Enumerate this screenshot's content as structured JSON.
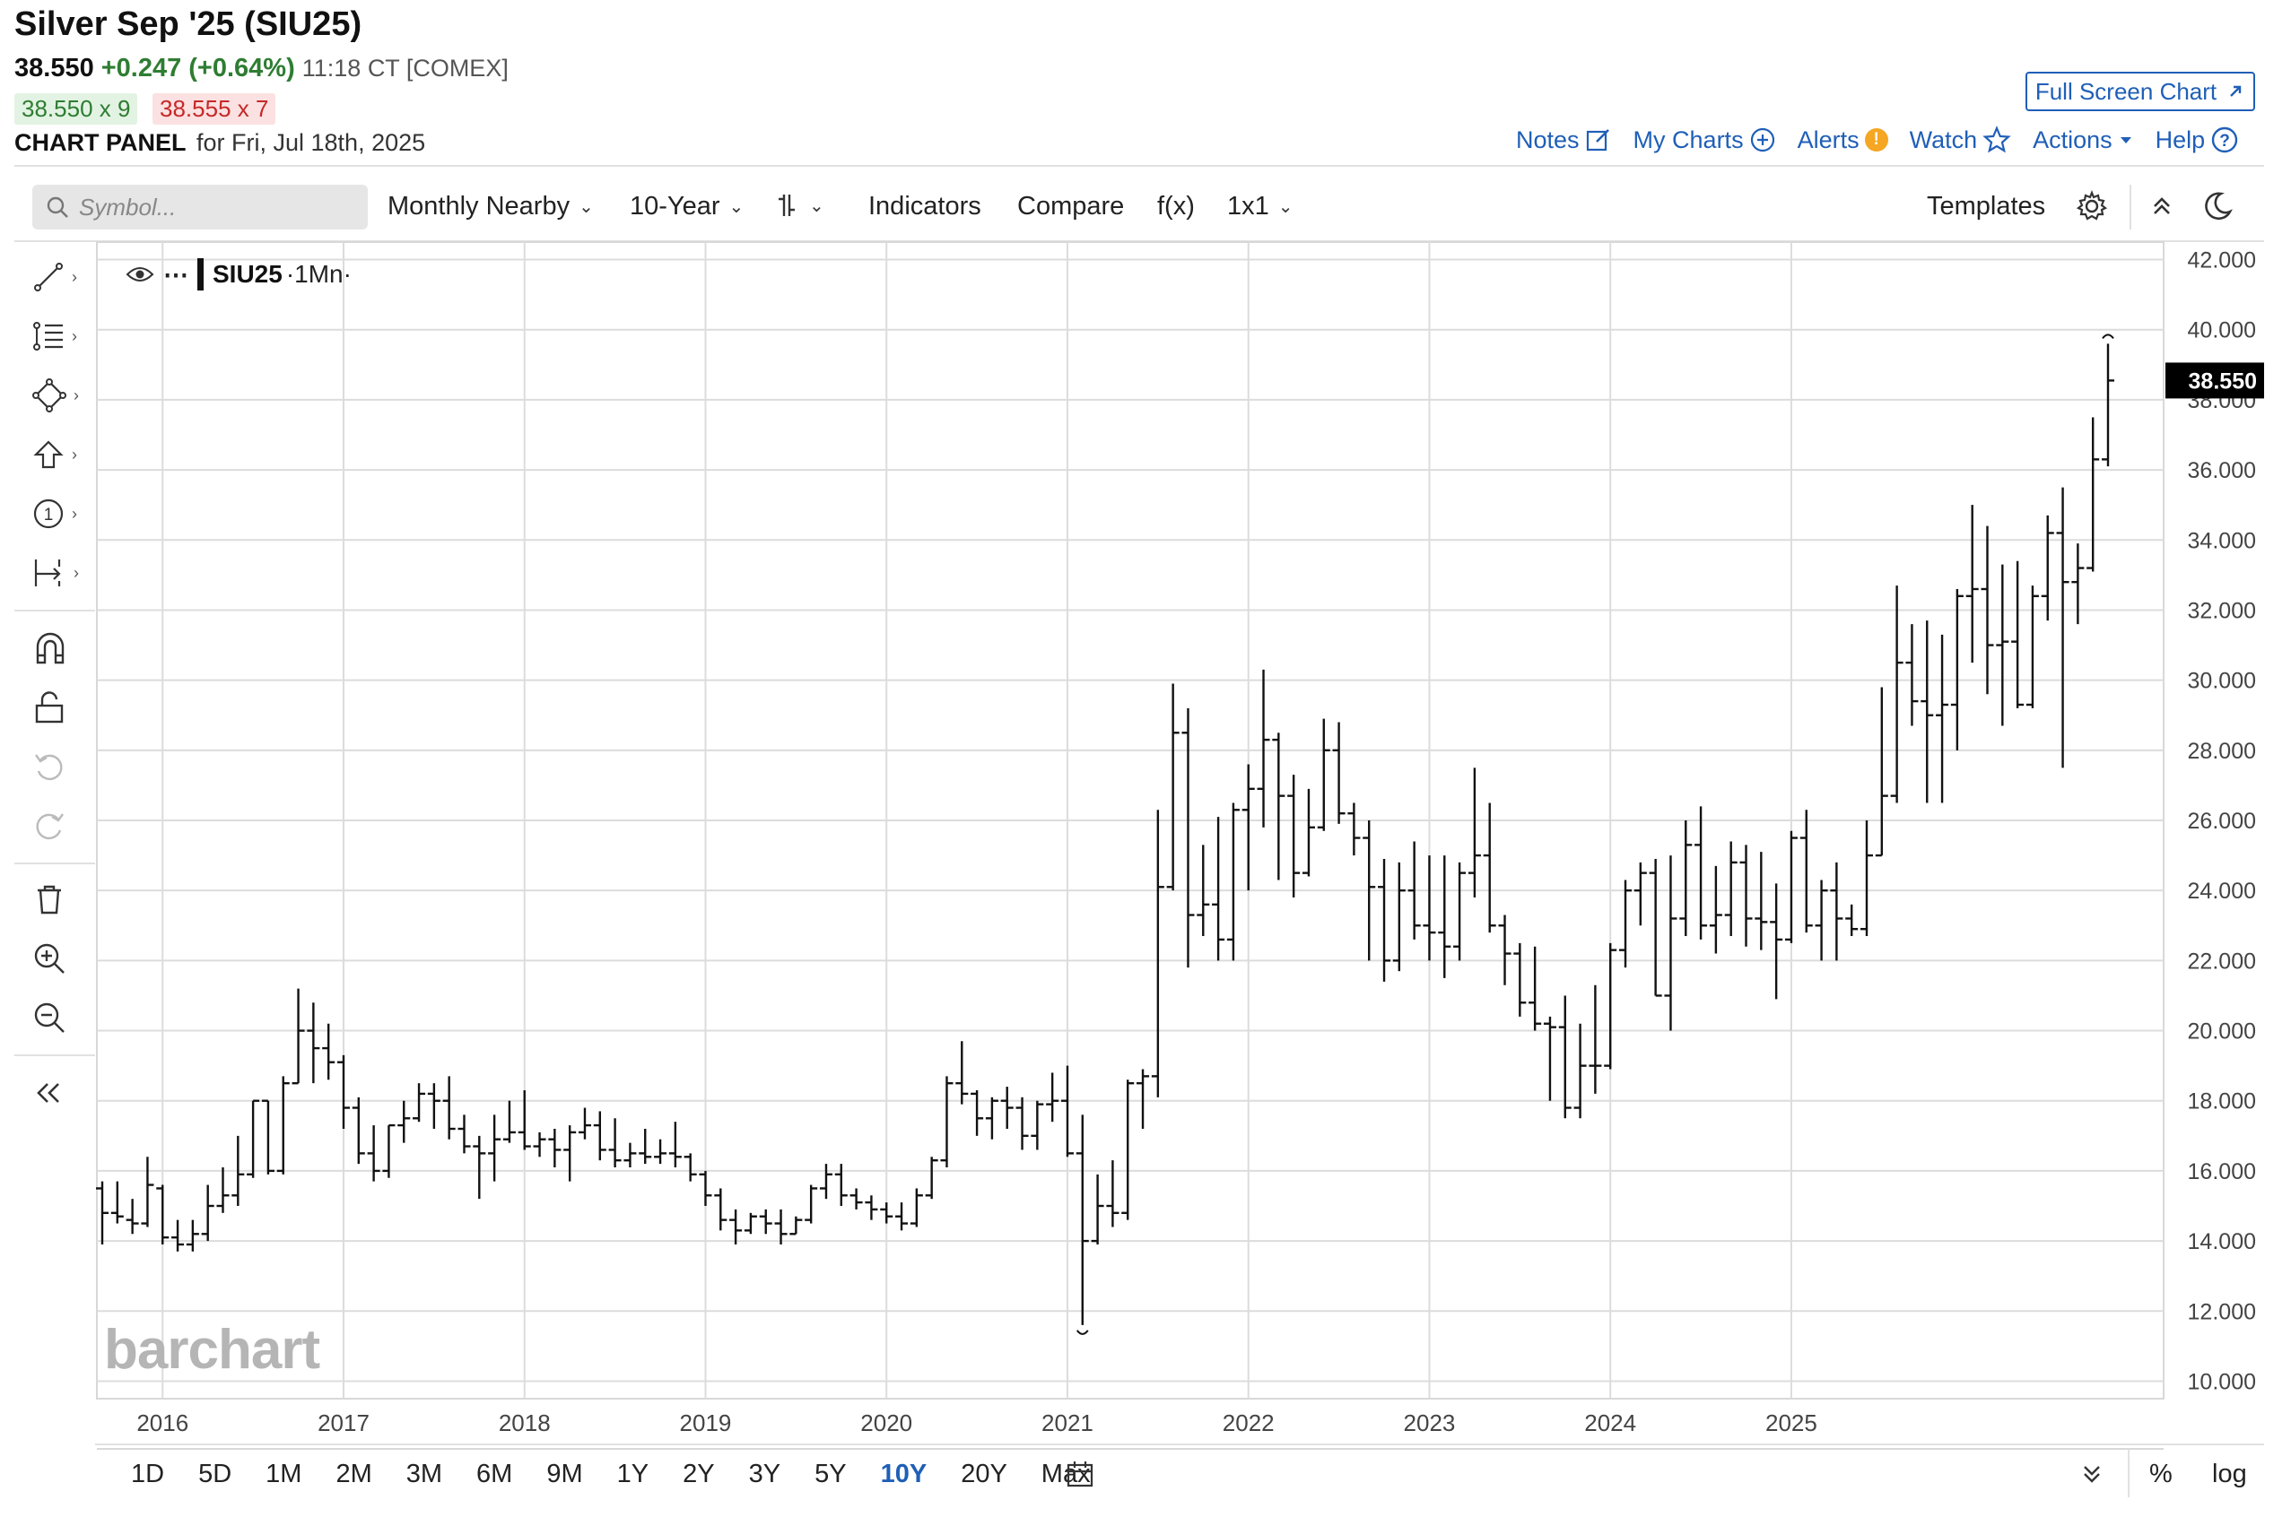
{
  "header": {
    "title": "Silver Sep '25 (SIU25)",
    "last": "38.550",
    "change": "+0.247 (+0.64%)",
    "time": "11:18 CT [COMEX]",
    "bid": "38.550 x 9",
    "ask": "38.555 x 7",
    "panel_label": "CHART PANEL",
    "panel_date": "for Fri, Jul 18th, 2025",
    "full_screen": "Full Screen Chart"
  },
  "top_links": {
    "notes": "Notes",
    "my_charts": "My Charts",
    "alerts": "Alerts",
    "watch": "Watch",
    "actions": "Actions",
    "help": "Help"
  },
  "toolbar": {
    "search_placeholder": "Symbol...",
    "aggregation": "Monthly Nearby",
    "range": "10-Year",
    "indicators": "Indicators",
    "compare": "Compare",
    "fx": "f(x)",
    "layout": "1x1",
    "templates": "Templates"
  },
  "legend": {
    "symbol": "SIU25",
    "interval": "·1Mn·"
  },
  "watermark": "barchart",
  "periods": [
    "1D",
    "5D",
    "1M",
    "2M",
    "3M",
    "6M",
    "9M",
    "1Y",
    "2Y",
    "3Y",
    "5Y",
    "10Y",
    "20Y",
    "Max"
  ],
  "selected_period": "10Y",
  "bottom_right": {
    "percent": "%",
    "log": "log"
  },
  "colors": {
    "accent": "#1f5fb7",
    "up": "#2e7d32",
    "down": "#c62828",
    "bars": "#111111",
    "grid": "#dcdcdc"
  },
  "chart_data": {
    "type": "ohlc",
    "interval": "monthly",
    "ylim": [
      9.5,
      42.5
    ],
    "y_ticks": [
      "10.000",
      "12.000",
      "14.000",
      "16.000",
      "18.000",
      "20.000",
      "22.000",
      "24.000",
      "26.000",
      "28.000",
      "30.000",
      "32.000",
      "34.000",
      "36.000",
      "38.000",
      "40.000",
      "42.000"
    ],
    "x_ticks": [
      "2016",
      "2017",
      "2018",
      "2019",
      "2020",
      "2021",
      "2022",
      "2023",
      "2024",
      "2025"
    ],
    "last_price_label": "38.550",
    "start": "2015-09",
    "bars": [
      [
        15.5,
        15.7,
        13.9,
        14.8
      ],
      [
        14.8,
        15.7,
        14.5,
        14.7
      ],
      [
        14.6,
        15.2,
        14.2,
        14.5
      ],
      [
        14.5,
        16.4,
        14.4,
        15.6
      ],
      [
        15.5,
        15.6,
        13.9,
        14.1
      ],
      [
        14.1,
        14.6,
        13.7,
        13.9
      ],
      [
        13.9,
        14.6,
        13.7,
        14.2
      ],
      [
        14.2,
        15.6,
        14.0,
        15.0
      ],
      [
        15.0,
        16.1,
        14.8,
        15.3
      ],
      [
        15.3,
        17.0,
        15.0,
        15.9
      ],
      [
        15.9,
        18.0,
        15.8,
        18.0
      ],
      [
        18.0,
        18.0,
        15.9,
        16.0
      ],
      [
        16.0,
        18.7,
        15.9,
        18.5
      ],
      [
        18.5,
        21.2,
        18.5,
        20.0
      ],
      [
        20.0,
        20.8,
        18.5,
        19.5
      ],
      [
        19.5,
        20.2,
        18.6,
        19.1
      ],
      [
        19.1,
        19.3,
        17.2,
        17.8
      ],
      [
        17.8,
        18.1,
        16.2,
        16.5
      ],
      [
        16.5,
        17.3,
        15.7,
        16.0
      ],
      [
        16.0,
        17.3,
        15.8,
        17.3
      ],
      [
        17.3,
        18.0,
        16.8,
        17.5
      ],
      [
        17.5,
        18.5,
        17.4,
        18.2
      ],
      [
        18.2,
        18.5,
        17.2,
        18.0
      ],
      [
        18.0,
        18.7,
        16.9,
        17.2
      ],
      [
        17.2,
        17.6,
        16.5,
        16.7
      ],
      [
        16.7,
        17.0,
        15.2,
        16.5
      ],
      [
        16.5,
        17.6,
        15.7,
        16.9
      ],
      [
        16.9,
        18.0,
        16.8,
        17.1
      ],
      [
        17.1,
        18.3,
        16.6,
        16.7
      ],
      [
        16.7,
        17.1,
        16.4,
        16.9
      ],
      [
        16.9,
        17.2,
        16.1,
        16.6
      ],
      [
        16.6,
        17.3,
        15.7,
        17.1
      ],
      [
        17.1,
        17.8,
        16.9,
        17.3
      ],
      [
        17.3,
        17.7,
        16.3,
        16.6
      ],
      [
        16.6,
        17.5,
        16.1,
        16.3
      ],
      [
        16.3,
        16.8,
        16.1,
        16.5
      ],
      [
        16.5,
        17.2,
        16.2,
        16.4
      ],
      [
        16.4,
        16.9,
        16.2,
        16.5
      ],
      [
        16.5,
        17.4,
        16.1,
        16.4
      ],
      [
        16.4,
        16.5,
        15.7,
        15.9
      ],
      [
        15.9,
        16.0,
        15.0,
        15.3
      ],
      [
        15.3,
        15.5,
        14.3,
        14.6
      ],
      [
        14.6,
        14.9,
        13.9,
        14.3
      ],
      [
        14.3,
        14.8,
        14.2,
        14.7
      ],
      [
        14.7,
        14.9,
        14.2,
        14.5
      ],
      [
        14.5,
        14.9,
        13.9,
        14.2
      ],
      [
        14.2,
        14.7,
        14.2,
        14.6
      ],
      [
        14.6,
        15.6,
        14.5,
        15.5
      ],
      [
        15.5,
        16.2,
        15.2,
        15.9
      ],
      [
        15.9,
        16.2,
        15.0,
        15.3
      ],
      [
        15.3,
        15.5,
        14.9,
        15.1
      ],
      [
        15.1,
        15.3,
        14.6,
        14.9
      ],
      [
        14.9,
        15.1,
        14.5,
        14.7
      ],
      [
        14.7,
        15.1,
        14.3,
        14.5
      ],
      [
        14.5,
        15.5,
        14.4,
        15.3
      ],
      [
        15.3,
        16.4,
        15.2,
        16.3
      ],
      [
        16.3,
        18.7,
        16.1,
        18.5
      ],
      [
        18.5,
        19.7,
        17.9,
        18.2
      ],
      [
        18.2,
        18.3,
        17.0,
        17.5
      ],
      [
        17.5,
        18.1,
        16.9,
        18.0
      ],
      [
        18.0,
        18.4,
        17.2,
        17.8
      ],
      [
        17.8,
        18.1,
        16.6,
        17.0
      ],
      [
        17.0,
        18.0,
        16.6,
        17.9
      ],
      [
        17.9,
        18.8,
        17.4,
        18.0
      ],
      [
        18.0,
        19.0,
        16.4,
        16.5
      ],
      [
        16.5,
        17.6,
        11.6,
        14.0
      ],
      [
        14.0,
        15.9,
        13.9,
        15.0
      ],
      [
        15.0,
        16.3,
        14.4,
        14.8
      ],
      [
        14.8,
        18.6,
        14.6,
        18.5
      ],
      [
        18.5,
        18.9,
        17.2,
        18.7
      ],
      [
        18.7,
        26.3,
        18.1,
        24.1
      ],
      [
        24.1,
        29.9,
        24.0,
        28.5
      ],
      [
        28.5,
        29.2,
        21.8,
        23.3
      ],
      [
        23.3,
        25.3,
        22.7,
        23.6
      ],
      [
        23.6,
        26.1,
        22.0,
        22.6
      ],
      [
        22.6,
        26.5,
        22.0,
        26.3
      ],
      [
        26.3,
        27.6,
        24.0,
        26.9
      ],
      [
        26.9,
        30.3,
        25.8,
        28.3
      ],
      [
        28.3,
        28.5,
        24.3,
        26.7
      ],
      [
        26.7,
        27.3,
        23.8,
        24.5
      ],
      [
        24.5,
        26.9,
        24.4,
        25.8
      ],
      [
        25.8,
        28.9,
        25.7,
        28.0
      ],
      [
        28.0,
        28.8,
        25.9,
        26.2
      ],
      [
        26.2,
        26.5,
        25.0,
        25.5
      ],
      [
        25.5,
        26.0,
        22.0,
        24.1
      ],
      [
        24.1,
        24.9,
        21.4,
        22.0
      ],
      [
        22.0,
        24.8,
        21.7,
        24.0
      ],
      [
        24.0,
        25.4,
        22.6,
        23.0
      ],
      [
        23.0,
        25.0,
        22.0,
        22.8
      ],
      [
        22.8,
        25.0,
        21.5,
        22.4
      ],
      [
        22.4,
        24.8,
        22.0,
        24.5
      ],
      [
        24.5,
        27.5,
        23.8,
        25.0
      ],
      [
        25.0,
        26.5,
        22.8,
        23.0
      ],
      [
        23.0,
        23.3,
        21.3,
        22.2
      ],
      [
        22.2,
        22.5,
        20.4,
        20.8
      ],
      [
        20.8,
        22.4,
        20.0,
        20.2
      ],
      [
        20.2,
        20.4,
        18.0,
        20.1
      ],
      [
        20.1,
        21.0,
        17.5,
        17.8
      ],
      [
        17.8,
        20.2,
        17.5,
        19.0
      ],
      [
        19.0,
        21.3,
        18.2,
        19.0
      ],
      [
        19.0,
        22.5,
        18.9,
        22.3
      ],
      [
        22.3,
        24.3,
        21.8,
        24.0
      ],
      [
        24.0,
        24.8,
        23.0,
        24.5
      ],
      [
        24.5,
        24.9,
        21.0,
        21.0
      ],
      [
        21.0,
        25.0,
        20.0,
        23.2
      ],
      [
        23.2,
        26.0,
        22.7,
        25.3
      ],
      [
        25.3,
        26.4,
        22.6,
        23.0
      ],
      [
        23.0,
        24.7,
        22.2,
        23.3
      ],
      [
        23.3,
        25.4,
        22.7,
        24.8
      ],
      [
        24.8,
        25.3,
        22.4,
        23.2
      ],
      [
        23.2,
        25.1,
        22.3,
        23.1
      ],
      [
        23.1,
        24.2,
        20.9,
        22.6
      ],
      [
        22.6,
        25.7,
        22.5,
        25.5
      ],
      [
        25.5,
        26.3,
        22.8,
        23.0
      ],
      [
        23.0,
        24.3,
        22.0,
        24.0
      ],
      [
        24.0,
        24.8,
        22.0,
        23.2
      ],
      [
        23.2,
        23.6,
        22.7,
        22.9
      ],
      [
        22.9,
        26.0,
        22.7,
        25.0
      ],
      [
        25.0,
        29.8,
        25.0,
        26.7
      ],
      [
        26.7,
        32.7,
        26.5,
        30.5
      ],
      [
        30.5,
        31.6,
        28.7,
        29.4
      ],
      [
        29.4,
        31.7,
        26.5,
        29.0
      ],
      [
        29.0,
        31.3,
        26.5,
        29.3
      ],
      [
        29.3,
        32.6,
        28.0,
        32.4
      ],
      [
        32.4,
        35.0,
        30.5,
        32.6
      ],
      [
        32.6,
        34.4,
        29.6,
        31.0
      ],
      [
        31.0,
        33.3,
        28.7,
        31.1
      ],
      [
        31.1,
        33.4,
        29.2,
        29.3
      ],
      [
        29.3,
        32.7,
        29.2,
        32.4
      ],
      [
        32.4,
        34.7,
        31.7,
        34.2
      ],
      [
        34.2,
        35.5,
        27.5,
        32.8
      ],
      [
        32.8,
        33.9,
        31.6,
        33.2
      ],
      [
        33.2,
        37.5,
        33.1,
        36.3
      ],
      [
        36.3,
        39.6,
        36.1,
        38.55
      ]
    ]
  }
}
